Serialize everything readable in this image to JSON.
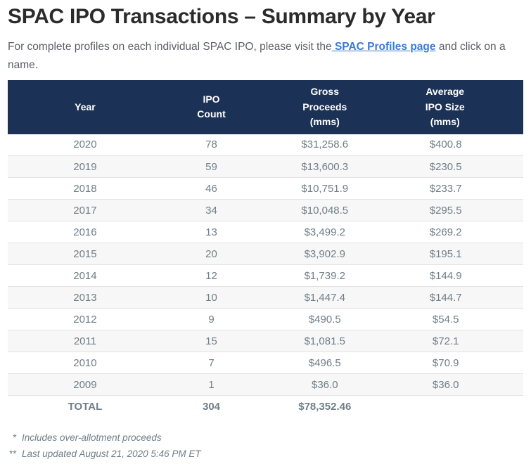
{
  "page": {
    "title": "SPAC IPO Transactions – Summary by Year",
    "intro": {
      "before_link": "For complete profiles on each individual SPAC IPO, please visit the",
      "link_text": " SPAC Profiles page",
      "after_link": " and click on a name."
    }
  },
  "colors": {
    "header_bg": "#1c3156",
    "header_text": "#ffffff",
    "link_blue": "#3a7bd5",
    "title_text": "#2b2b2b",
    "intro_text": "#5b6067",
    "table_text": "#6f7e87",
    "row_stripe": "#f7f7f7",
    "row_border": "#e2e2e2"
  },
  "table": {
    "columns": [
      {
        "key": "year",
        "lines": [
          "Year"
        ]
      },
      {
        "key": "ipo-count",
        "lines": [
          "IPO",
          "Count"
        ]
      },
      {
        "key": "gross-proceeds",
        "lines": [
          "Gross",
          "Proceeds",
          "(mms)"
        ]
      },
      {
        "key": "avg-ipo-size",
        "lines": [
          "Average",
          "IPO Size",
          "(mms)"
        ]
      }
    ],
    "rows": [
      [
        "2020",
        "78",
        "$31,258.6",
        "$400.8"
      ],
      [
        "2019",
        "59",
        "$13,600.3",
        "$230.5"
      ],
      [
        "2018",
        "46",
        "$10,751.9",
        "$233.7"
      ],
      [
        "2017",
        "34",
        "$10,048.5",
        "$295.5"
      ],
      [
        "2016",
        "13",
        "$3,499.2",
        "$269.2"
      ],
      [
        "2015",
        "20",
        "$3,902.9",
        "$195.1"
      ],
      [
        "2014",
        "12",
        "$1,739.2",
        "$144.9"
      ],
      [
        "2013",
        "10",
        "$1,447.4",
        "$144.7"
      ],
      [
        "2012",
        "9",
        "$490.5",
        "$54.5"
      ],
      [
        "2011",
        "15",
        "$1,081.5",
        "$72.1"
      ],
      [
        "2010",
        "7",
        "$496.5",
        "$70.9"
      ],
      [
        "2009",
        "1",
        "$36.0",
        "$36.0"
      ]
    ],
    "total_row": [
      "TOTAL",
      "304",
      "$78,352.46",
      ""
    ]
  },
  "footnotes": [
    {
      "mark": "*",
      "text": "Includes over-allotment proceeds"
    },
    {
      "mark": "**",
      "text": "Last updated August 21, 2020 5:46 PM ET"
    }
  ]
}
